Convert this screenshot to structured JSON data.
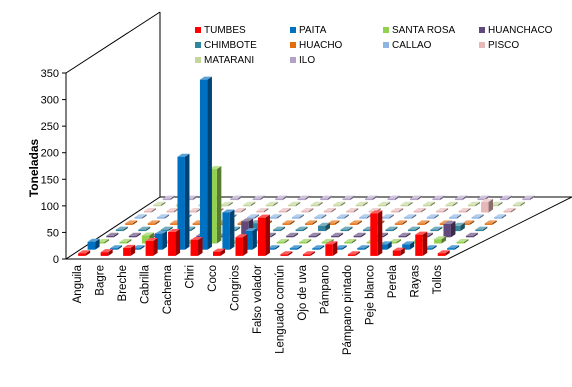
{
  "chart_data": {
    "type": "bar",
    "subtype": "3d-clustered-column",
    "ylabel": "Toneladas",
    "ylim": [
      0,
      350
    ],
    "yticks": [
      0,
      50,
      100,
      150,
      200,
      250,
      300,
      350
    ],
    "grid": false,
    "legend_position": "top-right",
    "categories": [
      "Anguila",
      "Bagre",
      "Breche",
      "Cabrilla",
      "Cachema",
      "Chiri",
      "Coco",
      "Congrios",
      "Falso volador",
      "Lenguado común",
      "Ojo de uva",
      "Pámpano",
      "Pámpano pintado",
      "Peje blanco",
      "Perela",
      "Rayas",
      "Tollos"
    ],
    "series": [
      {
        "name": "TUMBES",
        "color": "#ff0000",
        "values": [
          5,
          7,
          15,
          28,
          45,
          30,
          8,
          35,
          72,
          3,
          3,
          22,
          3,
          80,
          10,
          40,
          5
        ]
      },
      {
        "name": "PAITA",
        "color": "#0070c0",
        "values": [
          15,
          2,
          2,
          30,
          175,
          320,
          70,
          35,
          0,
          0,
          0,
          0,
          0,
          10,
          10,
          0,
          0
        ]
      },
      {
        "name": "SANTA ROSA",
        "color": "#92d050",
        "values": [
          1,
          1,
          15,
          1,
          1,
          140,
          1,
          1,
          1,
          1,
          1,
          1,
          1,
          1,
          1,
          8,
          1
        ]
      },
      {
        "name": "HUANCHACO",
        "color": "#604a7b",
        "values": [
          0,
          0,
          0,
          0,
          0,
          0,
          30,
          0,
          0,
          0,
          0,
          0,
          0,
          0,
          0,
          25,
          0
        ]
      },
      {
        "name": "CHIMBOTE",
        "color": "#31859c",
        "values": [
          1,
          1,
          1,
          1,
          1,
          1,
          15,
          1,
          1,
          10,
          1,
          1,
          1,
          1,
          1,
          10,
          1
        ]
      },
      {
        "name": "HUACHO",
        "color": "#e46c0a",
        "values": [
          0,
          0,
          0,
          0,
          0,
          0,
          0,
          0,
          0,
          0,
          0,
          0,
          0,
          0,
          0,
          0,
          0
        ]
      },
      {
        "name": "CALLAO",
        "color": "#8eb4e3",
        "values": [
          1,
          1,
          1,
          1,
          1,
          1,
          1,
          1,
          1,
          1,
          1,
          1,
          1,
          1,
          1,
          1,
          1
        ]
      },
      {
        "name": "PISCO",
        "color": "#e6b9b8",
        "values": [
          0,
          0,
          0,
          0,
          0,
          0,
          0,
          0,
          0,
          0,
          0,
          0,
          0,
          0,
          0,
          20,
          0
        ]
      },
      {
        "name": "MATARANI",
        "color": "#c3d69b",
        "values": [
          1,
          1,
          1,
          1,
          1,
          1,
          1,
          1,
          1,
          1,
          1,
          1,
          1,
          1,
          1,
          1,
          1
        ]
      },
      {
        "name": "ILO",
        "color": "#b3a2c7",
        "values": [
          1,
          1,
          1,
          1,
          1,
          1,
          1,
          1,
          1,
          1,
          1,
          1,
          1,
          1,
          1,
          1,
          1
        ]
      }
    ]
  }
}
